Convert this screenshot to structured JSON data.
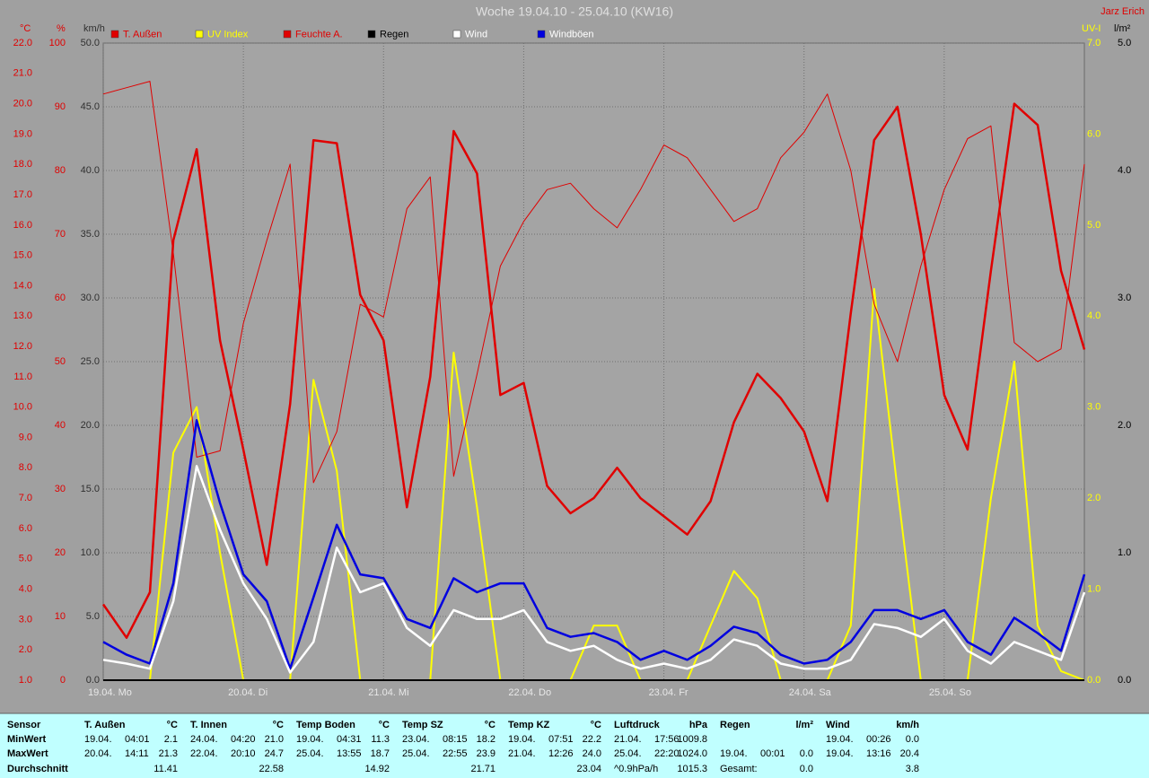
{
  "chart_data": {
    "type": "line",
    "title": "Woche 19.04.10 - 25.04.10 (KW16)",
    "author": "Jarz Erich",
    "grid": true,
    "xlim": [
      0,
      168
    ],
    "xticks": [
      {
        "value": 0,
        "label": "19.04. Mo"
      },
      {
        "value": 24,
        "label": "20.04. Di"
      },
      {
        "value": 48,
        "label": "21.04. Mi"
      },
      {
        "value": 72,
        "label": "22.04. Do"
      },
      {
        "value": 96,
        "label": "23.04. Fr"
      },
      {
        "value": 120,
        "label": "24.04. Sa"
      },
      {
        "value": 144,
        "label": "25.04. So"
      }
    ],
    "x": [
      0,
      4,
      8,
      12,
      16,
      20,
      24,
      28,
      32,
      36,
      40,
      44,
      48,
      52,
      56,
      60,
      64,
      68,
      72,
      76,
      80,
      84,
      88,
      92,
      96,
      100,
      104,
      108,
      112,
      116,
      120,
      124,
      128,
      132,
      136,
      140,
      144,
      148,
      152,
      156,
      160,
      164,
      168
    ],
    "axes": {
      "celsius": {
        "label": "°C",
        "color": "#e00000",
        "lim": [
          1,
          22
        ],
        "ticks": [
          {
            "value": 1,
            "label": "1.0"
          },
          {
            "value": 2,
            "label": "2.0"
          },
          {
            "value": 3,
            "label": "3.0"
          },
          {
            "value": 4,
            "label": "4.0"
          },
          {
            "value": 5,
            "label": "5.0"
          },
          {
            "value": 6,
            "label": "6.0"
          },
          {
            "value": 7,
            "label": "7.0"
          },
          {
            "value": 8,
            "label": "8.0"
          },
          {
            "value": 9,
            "label": "9.0"
          },
          {
            "value": 10,
            "label": "10.0"
          },
          {
            "value": 11,
            "label": "11.0"
          },
          {
            "value": 12,
            "label": "12.0"
          },
          {
            "value": 13,
            "label": "13.0"
          },
          {
            "value": 14,
            "label": "14.0"
          },
          {
            "value": 15,
            "label": "15.0"
          },
          {
            "value": 16,
            "label": "16.0"
          },
          {
            "value": 17,
            "label": "17.0"
          },
          {
            "value": 18,
            "label": "18.0"
          },
          {
            "value": 19,
            "label": "19.0"
          },
          {
            "value": 20,
            "label": "20.0"
          },
          {
            "value": 21,
            "label": "21.0"
          },
          {
            "value": 22,
            "label": "22.0"
          }
        ]
      },
      "percent": {
        "label": "%",
        "color": "#e00000",
        "lim": [
          0,
          100
        ],
        "ticks": [
          0,
          10,
          20,
          30,
          40,
          50,
          60,
          70,
          80,
          90,
          100
        ],
        "grid": true
      },
      "kmh": {
        "label": "km/h",
        "color": "#303030",
        "lim": [
          0,
          50
        ],
        "ticks": [
          {
            "value": 0,
            "label": "0.0"
          },
          {
            "value": 5,
            "label": "5.0"
          },
          {
            "value": 10,
            "label": "10.0"
          },
          {
            "value": 15,
            "label": "15.0"
          },
          {
            "value": 20,
            "label": "20.0"
          },
          {
            "value": 25,
            "label": "25.0"
          },
          {
            "value": 30,
            "label": "30.0"
          },
          {
            "value": 35,
            "label": "35.0"
          },
          {
            "value": 40,
            "label": "40.0"
          },
          {
            "value": 45,
            "label": "45.0"
          },
          {
            "value": 50,
            "label": "50.0"
          }
        ]
      },
      "uv": {
        "label": "UV-I",
        "color": "#ffff00",
        "lim": [
          0,
          7
        ],
        "ticks": [
          {
            "value": 0,
            "label": "0.0"
          },
          {
            "value": 1,
            "label": "1.0"
          },
          {
            "value": 2,
            "label": "2.0"
          },
          {
            "value": 3,
            "label": "3.0"
          },
          {
            "value": 4,
            "label": "4.0"
          },
          {
            "value": 5,
            "label": "5.0"
          },
          {
            "value": 6,
            "label": "6.0"
          },
          {
            "value": 7,
            "label": "7.0"
          }
        ]
      },
      "rain": {
        "label": "l/m²",
        "color": "#000000",
        "lim": [
          0,
          5
        ],
        "ticks": [
          {
            "value": 0,
            "label": "0.0"
          },
          {
            "value": 1,
            "label": "1.0"
          },
          {
            "value": 2,
            "label": "2.0"
          },
          {
            "value": 3,
            "label": "3.0"
          },
          {
            "value": 4,
            "label": "4.0"
          },
          {
            "value": 5,
            "label": "5.0"
          }
        ]
      }
    },
    "series": [
      {
        "name": "T. Außen",
        "color": "#e00000",
        "axis": "celsius",
        "width": 2.5,
        "values": [
          3.5,
          2.4,
          3.9,
          15.5,
          18.5,
          12.2,
          8.6,
          4.8,
          10.1,
          18.8,
          18.7,
          13.7,
          12.2,
          6.7,
          11,
          19.1,
          17.7,
          10.4,
          10.8,
          7.4,
          6.5,
          7.0,
          8.0,
          7.0,
          6.4,
          5.8,
          6.9,
          9.5,
          11.1,
          10.3,
          9.2,
          6.9,
          13.1,
          18.8,
          19.9,
          15.7,
          10.4,
          8.6,
          14.5,
          20.0,
          19.3,
          14.5,
          11.9
        ]
      },
      {
        "name": "UV Index",
        "color": "#ffff00",
        "axis": "uv",
        "width": 2,
        "values": [
          0,
          0,
          0,
          2.5,
          3.0,
          1.4,
          0,
          0,
          0,
          3.3,
          2.3,
          0,
          0,
          0,
          0,
          3.6,
          1.9,
          0,
          0,
          0,
          0,
          0.6,
          0.6,
          0,
          0,
          0,
          0.6,
          1.2,
          0.9,
          0,
          0,
          0,
          0.6,
          4.3,
          2.1,
          0,
          0,
          0,
          2.0,
          3.5,
          0.6,
          0.1,
          0
        ]
      },
      {
        "name": "Feuchte A.",
        "color": "#e00000",
        "axis": "percent",
        "width": 1,
        "values": [
          92,
          93,
          94,
          67,
          35,
          36,
          56,
          69,
          81,
          31,
          39,
          59,
          57,
          74,
          79,
          32,
          48,
          65,
          72,
          77,
          78,
          74,
          71,
          77,
          84,
          82,
          77,
          72,
          74,
          82,
          86,
          92,
          80,
          59,
          50,
          65,
          77,
          85,
          87,
          53,
          50,
          52,
          81
        ]
      },
      {
        "name": "Regen",
        "color": "#000000",
        "axis": "rain",
        "width": 2,
        "values": [
          0,
          0,
          0,
          0,
          0,
          0,
          0,
          0,
          0,
          0,
          0,
          0,
          0,
          0,
          0,
          0,
          0,
          0,
          0,
          0,
          0,
          0,
          0,
          0,
          0,
          0,
          0,
          0,
          0,
          0,
          0,
          0,
          0,
          0,
          0,
          0,
          0,
          0,
          0,
          0,
          0,
          0,
          0
        ]
      },
      {
        "name": "Windböen",
        "color": "#0000e0",
        "axis": "kmh",
        "width": 2.5,
        "values": [
          3.0,
          2.0,
          1.3,
          7.6,
          20.4,
          13.9,
          8.3,
          6.2,
          0.9,
          6.5,
          12.2,
          8.3,
          8.0,
          4.8,
          4.1,
          8.0,
          6.9,
          7.6,
          7.6,
          4.1,
          3.4,
          3.7,
          3.0,
          1.6,
          2.3,
          1.6,
          2.7,
          4.2,
          3.7,
          2.0,
          1.3,
          1.6,
          3.0,
          5.5,
          5.5,
          4.8,
          5.5,
          3.0,
          2.0,
          4.9,
          3.7,
          2.3,
          8.3
        ]
      },
      {
        "name": "Wind",
        "color": "#ffffff",
        "axis": "kmh",
        "width": 2.5,
        "values": [
          1.6,
          1.3,
          0.9,
          6.2,
          16.8,
          11.8,
          7.6,
          4.8,
          0.6,
          3.0,
          10.4,
          6.9,
          7.6,
          4.1,
          2.7,
          5.5,
          4.8,
          4.8,
          5.5,
          3.0,
          2.3,
          2.7,
          1.6,
          0.9,
          1.3,
          0.9,
          1.6,
          3.2,
          2.7,
          1.3,
          0.9,
          0.9,
          1.6,
          4.4,
          4.1,
          3.4,
          4.8,
          2.3,
          1.3,
          3.0,
          2.3,
          1.6,
          6.9
        ]
      }
    ],
    "legend": [
      "T. Außen",
      "UV Index",
      "Feuchte A.",
      "Regen",
      "Wind",
      "Windböen"
    ]
  },
  "table": {
    "row_labels": [
      "Sensor",
      "MinWert",
      "MaxWert",
      "Durchschnitt"
    ],
    "columns": [
      {
        "name": "T. Außen",
        "unit": "°C",
        "rows": [
          [
            "19.04.",
            "04:01",
            "2.1"
          ],
          [
            "20.04.",
            "14:11",
            "21.3"
          ],
          [
            "11.41"
          ]
        ]
      },
      {
        "name": "T. Innen",
        "unit": "°C",
        "rows": [
          [
            "24.04.",
            "04:20",
            "21.0"
          ],
          [
            "22.04.",
            "20:10",
            "24.7"
          ],
          [
            "22.58"
          ]
        ]
      },
      {
        "name": "Temp Boden",
        "unit": "°C",
        "rows": [
          [
            "19.04.",
            "04:31",
            "11.3"
          ],
          [
            "25.04.",
            "13:55",
            "18.7"
          ],
          [
            "14.92"
          ]
        ]
      },
      {
        "name": "Temp SZ",
        "unit": "°C",
        "rows": [
          [
            "23.04.",
            "08:15",
            "18.2"
          ],
          [
            "25.04.",
            "22:55",
            "23.9"
          ],
          [
            "21.71"
          ]
        ]
      },
      {
        "name": "Temp KZ",
        "unit": "°C",
        "rows": [
          [
            "19.04.",
            "07:51",
            "22.2"
          ],
          [
            "21.04.",
            "12:26",
            "24.0"
          ],
          [
            "23.04"
          ]
        ]
      },
      {
        "name": "Luftdruck",
        "unit": "hPa",
        "rows": [
          [
            "21.04.",
            "17:56",
            "1009.8"
          ],
          [
            "25.04.",
            "22:20",
            "1024.0"
          ],
          [
            "^0.9hPa/h",
            "1015.3"
          ]
        ]
      },
      {
        "name": "Regen",
        "unit": "l/m²",
        "rows": [
          [],
          [
            "19.04.",
            "00:01",
            "0.0"
          ],
          [
            "Gesamt:",
            "0.0"
          ]
        ]
      },
      {
        "name": "Wind",
        "unit": "km/h",
        "rows": [
          [
            "19.04.",
            "00:26",
            "0.0"
          ],
          [
            "19.04.",
            "13:16",
            "20.4"
          ],
          [
            "3.8"
          ]
        ]
      }
    ]
  }
}
